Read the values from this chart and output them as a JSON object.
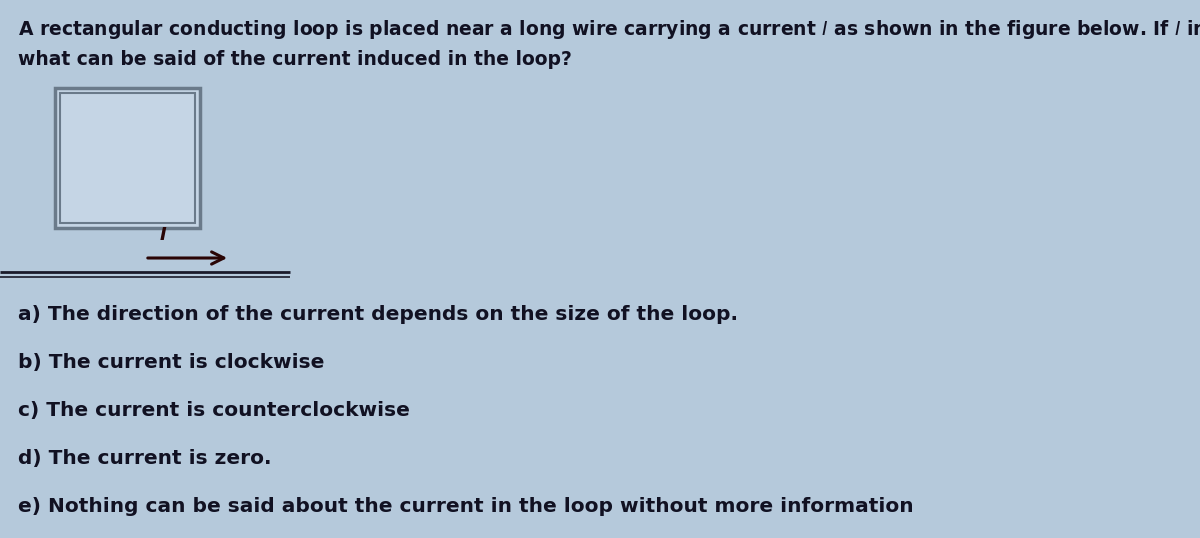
{
  "bg_color": "#b5c9db",
  "text_color": "#111122",
  "rect_color": "#6a7a8a",
  "rect_inner_color": "#c5d5e5",
  "wire_color": "#1a1a2a",
  "arrow_color": "#2a0505",
  "title_line1": "A rectangular conducting loop is placed near a long wire carrying a current $I$ as shown in the figure below. If $I$ increases in time,",
  "title_line2": "what can be said of the current induced in the loop?",
  "options": [
    "a) The direction of the current depends on the size of the loop.",
    "b) The current is clockwise",
    "c) The current is counterclockwise",
    "d) The current is zero.",
    "e) Nothing can be said about the current in the loop without more information"
  ],
  "title_fontsize": 13.5,
  "option_fontsize": 14.5,
  "fig_width": 12.0,
  "fig_height": 5.38,
  "dpi": 100
}
